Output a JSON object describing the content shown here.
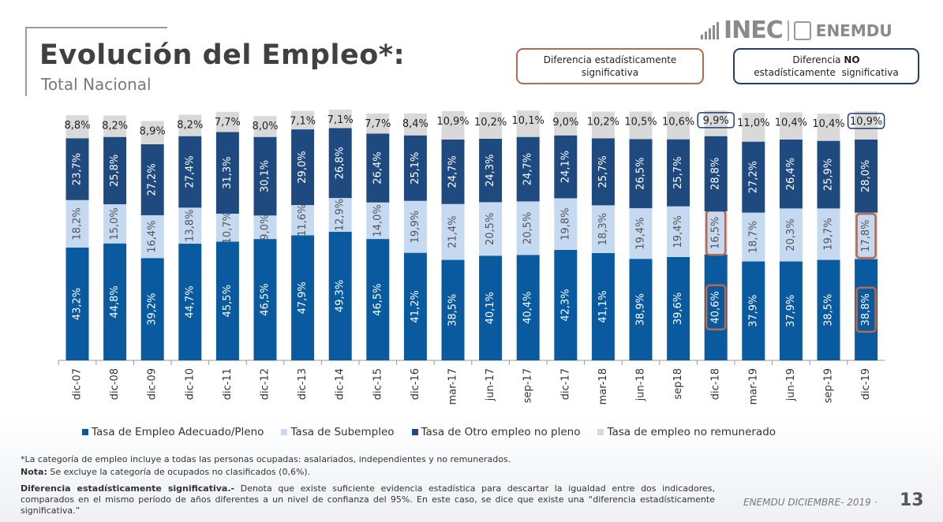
{
  "header": {
    "title": "Evolución del Empleo*:",
    "subtitle": "Total Nacional",
    "logo_text": "INEC",
    "logo_product": "ENEMDU"
  },
  "legend_boxes": {
    "significant": "Diferencia estadísticamente significativa",
    "not_significant_prefix": "Diferencia",
    "not_significant_bold": "NO",
    "not_significant_suffix": "estadísticamente  significativa"
  },
  "colors": {
    "adecuado": "#0a5aa0",
    "subempleo": "#c5d9f0",
    "otro": "#1f4a80",
    "no_remunerado": "#d9d9d9",
    "significant": "#b5694e",
    "not_significant": "#1f3e6e"
  },
  "chart_data": {
    "type": "bar",
    "stacked": true,
    "categories": [
      "dic-07",
      "dic-08",
      "dic-09",
      "dic-10",
      "dic-11",
      "dic-12",
      "dic-13",
      "dic-14",
      "dic-15",
      "dic-16",
      "mar-17",
      "jun-17",
      "sep-17",
      "dic-17",
      "mar-18",
      "jun-18",
      "sep18",
      "dic-18",
      "mar-19",
      "jun-19",
      "sep-19",
      "dic-19"
    ],
    "series": [
      {
        "name": "Tasa de Empleo Adecuado/Pleno",
        "key": "adecuado",
        "values": [
          43.2,
          44.8,
          39.2,
          44.7,
          45.5,
          46.5,
          47.9,
          49.3,
          46.5,
          41.2,
          38.5,
          40.1,
          40.4,
          42.3,
          41.1,
          38.9,
          39.6,
          40.6,
          37.9,
          37.9,
          38.5,
          38.8
        ]
      },
      {
        "name": "Tasa de Subempleo",
        "key": "subempleo",
        "values": [
          18.2,
          15.0,
          16.4,
          13.8,
          10.7,
          9.0,
          11.6,
          12.9,
          14.0,
          19.9,
          21.4,
          20.5,
          20.5,
          19.8,
          18.3,
          19.4,
          19.4,
          16.5,
          18.7,
          20.3,
          19.7,
          17.8
        ]
      },
      {
        "name": "Tasa de Otro empleo no pleno",
        "key": "otro",
        "values": [
          23.7,
          25.8,
          27.2,
          27.4,
          31.3,
          30.1,
          29.0,
          26.8,
          26.4,
          25.1,
          24.7,
          24.3,
          24.7,
          24.1,
          25.7,
          26.5,
          25.7,
          28.8,
          27.2,
          26.4,
          25.9,
          28.0
        ]
      },
      {
        "name": "Tasa de empleo no remunerado",
        "key": "no_remunerado",
        "values": [
          8.8,
          8.2,
          8.9,
          8.2,
          7.7,
          8.0,
          7.1,
          7.1,
          7.7,
          8.4,
          10.9,
          10.2,
          10.1,
          9.0,
          10.2,
          10.5,
          10.6,
          9.9,
          11.0,
          10.4,
          10.4,
          10.9
        ]
      }
    ],
    "value_format": "comma-decimal-percent",
    "ylim": [
      0,
      100
    ],
    "grid": false,
    "legend_position": "bottom",
    "highlights": [
      {
        "category": "dic-18",
        "series": "adecuado",
        "type": "significant"
      },
      {
        "category": "dic-18",
        "series": "subempleo",
        "type": "significant"
      },
      {
        "category": "dic-18",
        "series": "no_remunerado",
        "type": "not_significant"
      },
      {
        "category": "dic-19",
        "series": "adecuado",
        "type": "significant"
      },
      {
        "category": "dic-19",
        "series": "subempleo",
        "type": "significant"
      },
      {
        "category": "dic-19",
        "series": "no_remunerado",
        "type": "not_significant"
      }
    ]
  },
  "notes": {
    "note1": "*La categoría de empleo incluye a todas las personas ocupadas: asalariados, independientes y no remunerados.",
    "note2_label": "Nota:",
    "note2_text": " Se excluye la categoría de ocupados no clasificados (0,6%).",
    "note3_label": "Diferencia estadísticamente significativa.-",
    "note3_text": " Denota que existe suficiente evidencia estadística para descartar la igualdad entre dos indicadores, comparados en el mismo período de años diferentes a un nivel de confianza del 95%. En este caso, se dice que existe una “diferencia estadísticamente significativa.”"
  },
  "footer": {
    "label": "ENEMDU DICIEMBRE- 2019 ·",
    "page": "13"
  }
}
